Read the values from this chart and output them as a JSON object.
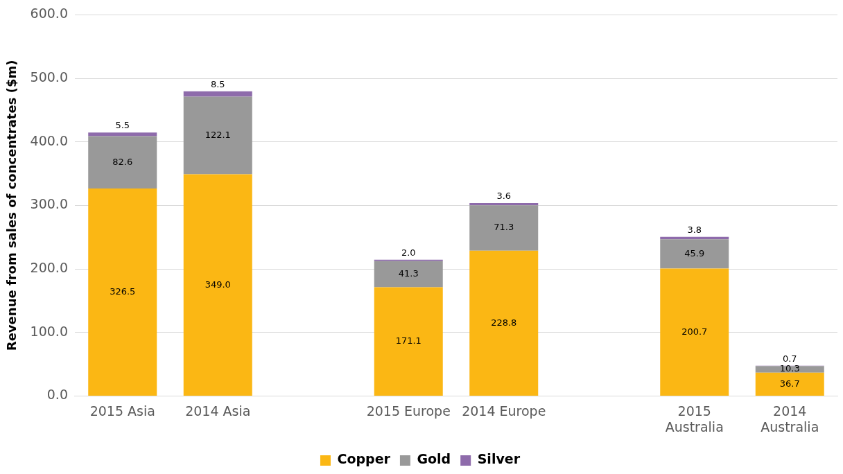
{
  "chart_data": {
    "type": "bar",
    "stacked": true,
    "ylabel": "Revenue from sales of concentrates ($m)",
    "categories": [
      "2015 Asia",
      "2014 Asia",
      null,
      "2015 Europe",
      "2014 Europe",
      null,
      "2015 Australia",
      "2014 Australia"
    ],
    "series": [
      {
        "name": "Copper",
        "color": "#fbb714",
        "values": [
          326.5,
          349.0,
          null,
          171.1,
          228.8,
          null,
          200.7,
          36.7
        ],
        "value_labels": [
          "326.5",
          "349.0",
          null,
          "171.1",
          "228.8",
          null,
          "200.7",
          "36.7"
        ]
      },
      {
        "name": "Gold",
        "color": "#999999",
        "values": [
          82.6,
          122.1,
          null,
          41.3,
          71.3,
          null,
          45.9,
          10.3
        ],
        "value_labels": [
          "82.6",
          "122.1",
          null,
          "41.3",
          "71.3",
          null,
          "45.9",
          "10.3"
        ]
      },
      {
        "name": "Silver",
        "color": "#8e6bab",
        "values": [
          5.5,
          8.5,
          null,
          2.0,
          3.6,
          null,
          3.8,
          0.7
        ],
        "value_labels": [
          "5.5",
          "8.5",
          null,
          "2.0",
          "3.6",
          null,
          "3.8",
          "0.7"
        ]
      }
    ],
    "ylim": [
      0,
      600
    ],
    "yticks": [
      {
        "value": 0,
        "label": "0.0"
      },
      {
        "value": 100,
        "label": "100.0"
      },
      {
        "value": 200,
        "label": "200.0"
      },
      {
        "value": 300,
        "label": "300.0"
      },
      {
        "value": 400,
        "label": "400.0"
      },
      {
        "value": 500,
        "label": "500.0"
      },
      {
        "value": 600,
        "label": "600.0"
      }
    ],
    "grid": "y",
    "legend": "bottom"
  }
}
